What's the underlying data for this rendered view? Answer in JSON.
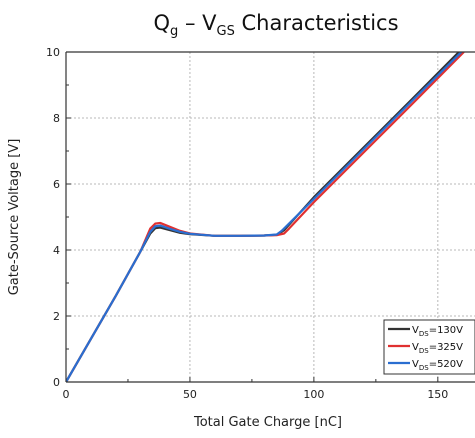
{
  "chart_data": {
    "type": "line",
    "title": {
      "main": "Q",
      "main_sub": "g",
      "sep": " – V",
      "sep_sub": "GS",
      "rest": " Characteristics"
    },
    "xlabel": "Total Gate Charge [nC]",
    "ylabel": "Gate-Source Voltage [V]",
    "xlim": [
      0,
      165
    ],
    "ylim": [
      0,
      10
    ],
    "xticks": [
      0,
      50,
      100,
      150
    ],
    "yticks": [
      0,
      2,
      4,
      6,
      8,
      10
    ],
    "grid": true,
    "legend_position": "bottom-right",
    "series": [
      {
        "name": {
          "prefix": "V",
          "sub": "DS",
          "suffix": "=130V"
        },
        "color": "#333333",
        "x": [
          0,
          10,
          20,
          30,
          34,
          36,
          38,
          42,
          46,
          50,
          60,
          70,
          80,
          85,
          88,
          100,
          120,
          140,
          158.5
        ],
        "y": [
          0,
          1.3,
          2.6,
          3.95,
          4.5,
          4.66,
          4.68,
          4.6,
          4.52,
          4.48,
          4.43,
          4.43,
          4.44,
          4.46,
          4.6,
          5.6,
          7.1,
          8.6,
          10
        ]
      },
      {
        "name": {
          "prefix": "V",
          "sub": "DS",
          "suffix": "=325V"
        },
        "color": "#e03030",
        "x": [
          0,
          10,
          20,
          30,
          34,
          36,
          38,
          42,
          46,
          50,
          60,
          70,
          80,
          85,
          88,
          90,
          100,
          120,
          140,
          160.5
        ],
        "y": [
          0,
          1.3,
          2.6,
          3.95,
          4.65,
          4.8,
          4.82,
          4.7,
          4.58,
          4.5,
          4.43,
          4.43,
          4.44,
          4.45,
          4.5,
          4.65,
          5.45,
          6.95,
          8.45,
          10
        ]
      },
      {
        "name": {
          "prefix": "V",
          "sub": "DS",
          "suffix": "=520V"
        },
        "color": "#2a6ed0",
        "x": [
          0,
          10,
          20,
          30,
          34,
          36,
          38,
          42,
          46,
          50,
          60,
          70,
          80,
          85,
          87,
          100,
          120,
          140,
          159.5
        ],
        "y": [
          0,
          1.3,
          2.6,
          3.95,
          4.55,
          4.72,
          4.74,
          4.64,
          4.55,
          4.49,
          4.43,
          4.43,
          4.44,
          4.47,
          4.58,
          5.55,
          7.05,
          8.55,
          10
        ]
      }
    ]
  }
}
